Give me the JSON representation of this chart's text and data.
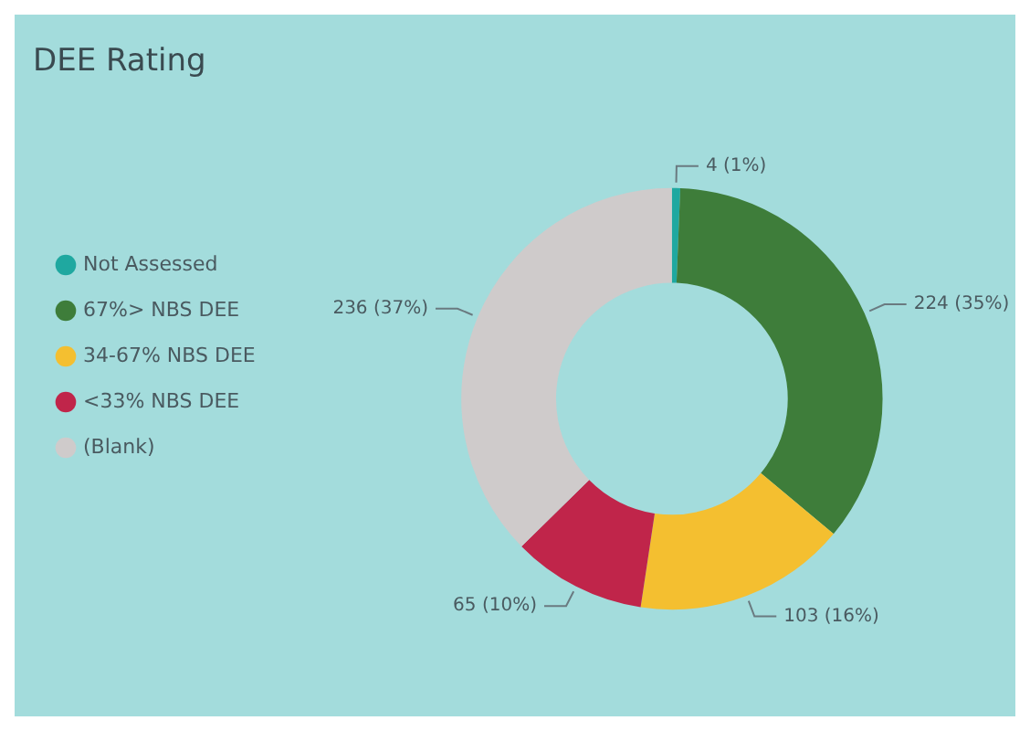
{
  "chart_data": {
    "type": "donut",
    "title": "DEE Rating",
    "categories": [
      "Not Assessed",
      "67%> NBS DEE",
      "34-67% NBS DEE",
      "<33% NBS DEE",
      "(Blank)"
    ],
    "values": [
      4,
      224,
      103,
      65,
      236
    ],
    "value_labels": [
      "4 (1%)",
      "224 (35%)",
      "103 (16%)",
      "65 (10%)",
      "236 (37%)"
    ],
    "colors": [
      "#1fa8a0",
      "#3e7d3a",
      "#f4bf30",
      "#c0254a",
      "#cfcbcb"
    ],
    "legend": "left"
  }
}
